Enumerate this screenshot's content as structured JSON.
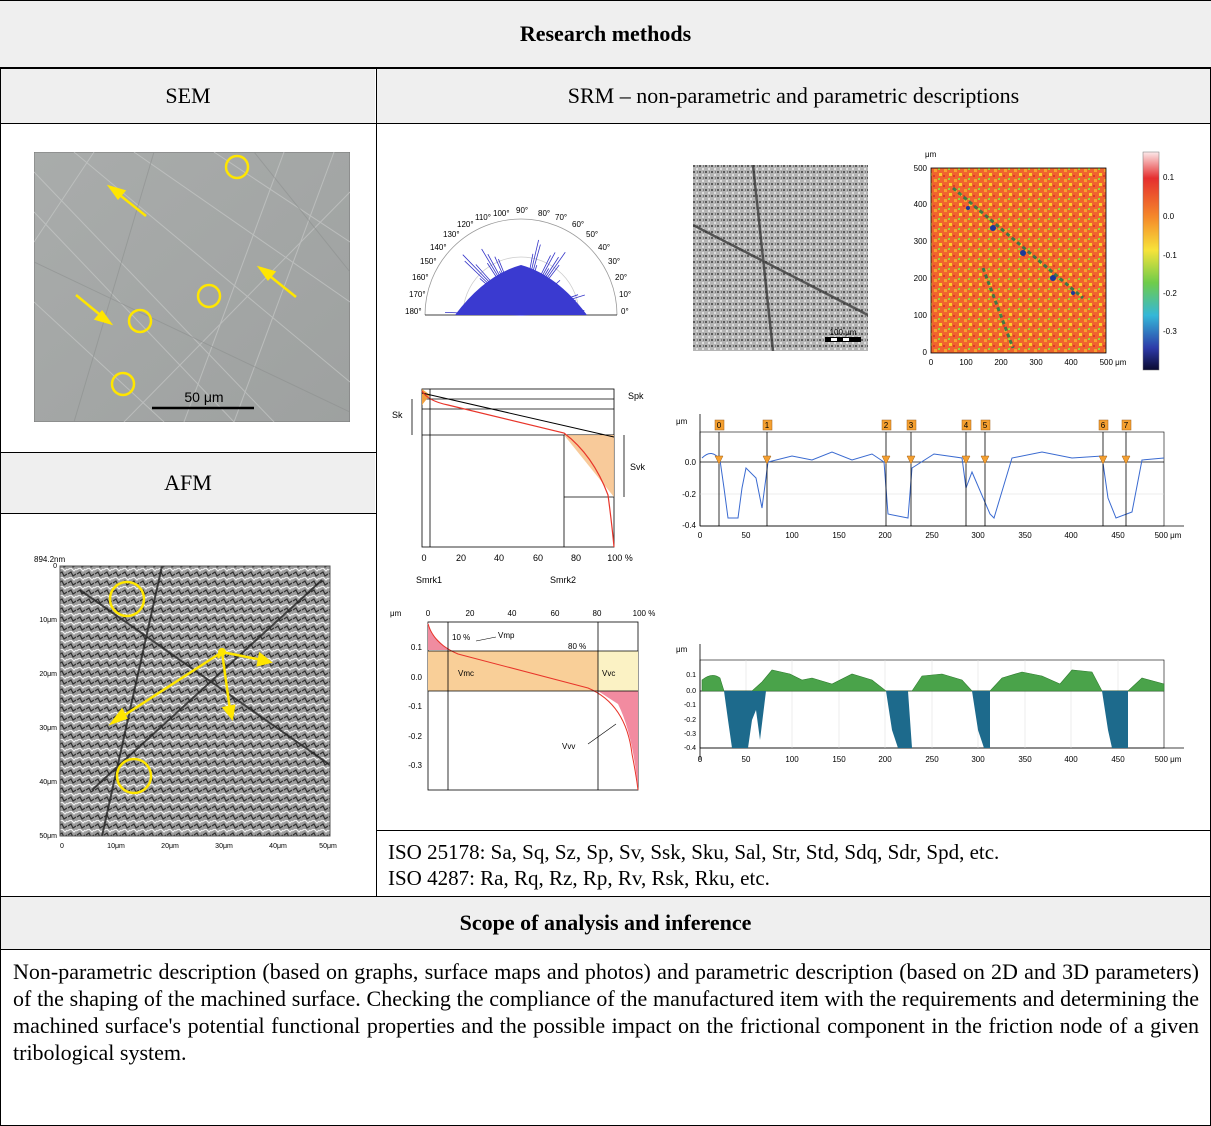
{
  "header": {
    "title": "Research methods"
  },
  "columns": {
    "sem": "SEM",
    "srm": "SRM – non-parametric and parametric descriptions",
    "afm": "AFM"
  },
  "sem_image": {
    "scale_label": "50 μm"
  },
  "afm_image": {
    "top_label": "894.2nm",
    "y_ticks": [
      "0",
      "10μm",
      "20μm",
      "30μm",
      "40μm",
      "50μm"
    ],
    "x_ticks": [
      "0",
      "10μm",
      "20μm",
      "30μm",
      "40μm",
      "50μm"
    ]
  },
  "polar_plot": {
    "angles": [
      "0°",
      "10°",
      "20°",
      "30°",
      "40°",
      "50°",
      "60°",
      "70°",
      "80°",
      "90°",
      "100°",
      "110°",
      "120°",
      "130°",
      "140°",
      "150°",
      "160°",
      "170°",
      "180°"
    ]
  },
  "grey_map": {
    "scale_label": "100 μm"
  },
  "color_map": {
    "unit": "μm",
    "y_ticks": [
      "0",
      "100",
      "200",
      "300",
      "400",
      "500"
    ],
    "x_ticks": [
      "0",
      "100",
      "200",
      "300",
      "400",
      "500 μm"
    ],
    "colorbar_ticks": [
      "0.1",
      "0.0",
      "-0.1",
      "-0.2",
      "-0.3"
    ]
  },
  "abbott_chart": {
    "labels": {
      "spk": "Spk",
      "sk": "Sk",
      "svk": "Svk",
      "smrk1": "Smrk1",
      "smrk2": "Smrk2"
    },
    "x_ticks": [
      "0",
      "20",
      "40",
      "60",
      "80",
      "100 %"
    ]
  },
  "profile_chart": {
    "unit": "μm",
    "y_ticks": [
      "0.0",
      "-0.2",
      "-0.4"
    ],
    "x_ticks": [
      "0",
      "50",
      "100",
      "150",
      "200",
      "250",
      "300",
      "350",
      "400",
      "450",
      "500 μm"
    ],
    "markers": [
      "0",
      "1",
      "2",
      "3",
      "4",
      "5",
      "6",
      "7"
    ]
  },
  "volume_chart": {
    "unit": "μm",
    "x_ticks": [
      "0",
      "20",
      "40",
      "60",
      "80",
      "100 %"
    ],
    "y_ticks": [
      "0.1",
      "0.0",
      "-0.1",
      "-0.2",
      "-0.3"
    ],
    "labels": {
      "p10": "10 %",
      "vmp": "Vmp",
      "p80": "80 %",
      "vmc": "Vmc",
      "vvc": "Vvc",
      "vvv": "Vvv"
    }
  },
  "area_profile_chart": {
    "unit": "μm",
    "y_ticks": [
      "0.1",
      "0.0",
      "-0.1",
      "-0.2",
      "-0.3",
      "-0.4"
    ],
    "x_ticks": [
      "0",
      "50",
      "100",
      "150",
      "200",
      "250",
      "300",
      "350",
      "400",
      "450",
      "500 μm"
    ]
  },
  "iso": {
    "line1": "ISO 25178: Sa, Sq, Sz, Sp, Sv, Ssk, Sku, Sal, Str, Std, Sdq, Sdr, Spd, etc.",
    "line2": "ISO 4287: Ra, Rq, Rz, Rp, Rv, Rsk, Rku, etc."
  },
  "scope": {
    "title": "Scope of analysis and inference",
    "text": "Non-parametric description (based on graphs, surface maps and photos) and parametric description (based on 2D and 3D parameters) of the shaping of the machined surface. Checking the compliance of the manufactured item with the requirements and determining the machined surface's potential functional properties and the possible impact on the frictional component in the friction node of a given tribological system."
  }
}
